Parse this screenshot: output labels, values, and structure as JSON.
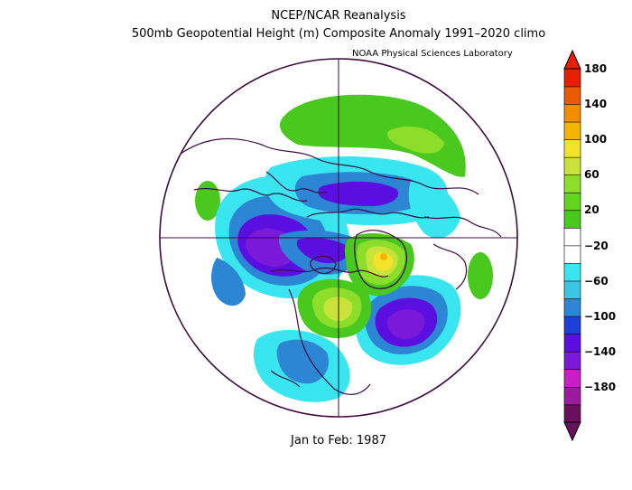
{
  "header": {
    "title": "NCEP/NCAR Reanalysis",
    "subtitle": "500mb Geopotential Height (m) Composite Anomaly 1991–2020 climo",
    "credit": "NOAA Physical Sciences Laboratory"
  },
  "footer": {
    "period": "Jan to Feb: 1987"
  },
  "colorbar": {
    "ticks": [
      "180",
      "140",
      "100",
      "60",
      "20",
      "−20",
      "−60",
      "−100",
      "−140",
      "−180"
    ],
    "colors": [
      "#6a0f5b",
      "#9c1aa0",
      "#c81ec6",
      "#7a1ad8",
      "#5a0fe0",
      "#1e3fd9",
      "#2d86d4",
      "#3cc4e4",
      "#39e6f0",
      "#ffffff",
      "#ffffff",
      "#49c81e",
      "#62d51f",
      "#8cde2b",
      "#c9e33a",
      "#f2e32a",
      "#f5b400",
      "#f28c00",
      "#ec5a00",
      "#e81e00"
    ]
  },
  "map_data": {
    "projection": "north-polar-stereographic",
    "field": "500mb geopotential height anomaly (m)",
    "anomalies": [
      {
        "region": "Alaska / Bering",
        "sign": "positive",
        "peak": 40
      },
      {
        "region": "Siberia",
        "sign": "negative",
        "peak": -110
      },
      {
        "region": "Greenland",
        "sign": "positive",
        "peak": 100
      },
      {
        "region": "North Atlantic",
        "sign": "negative",
        "peak": -110
      },
      {
        "region": "Eastern North America",
        "sign": "negative",
        "peak": -100
      },
      {
        "region": "Western North America",
        "sign": "positive",
        "peak": 60
      }
    ]
  }
}
